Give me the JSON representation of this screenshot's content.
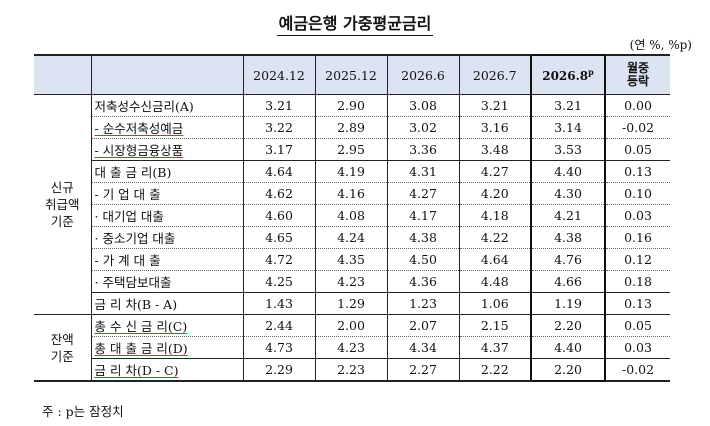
{
  "title": "예금은행 가중평균금리",
  "unit": "(연 %, %p)",
  "columns": [
    "2024.12",
    "2025.12",
    "2026.6",
    "2026.7",
    "2026.8",
    "p",
    "월중",
    "등락"
  ],
  "groups": {
    "new": "신규\n취급액\n기준",
    "balance": "잔액\n기준"
  },
  "rows": [
    {
      "label": "저축성수신금리(A)",
      "v": [
        "3.21",
        "2.90",
        "3.08",
        "3.21",
        "3.21",
        "0.00"
      ]
    },
    {
      "label": "- 순수저축성예금",
      "v": [
        "3.22",
        "2.89",
        "3.02",
        "3.16",
        "3.14",
        "-0.02"
      ]
    },
    {
      "label": "- 시장형금융상품",
      "v": [
        "3.17",
        "2.95",
        "3.36",
        "3.48",
        "3.53",
        "0.05"
      ]
    },
    {
      "label": "대 출 금 리(B)",
      "v": [
        "4.64",
        "4.19",
        "4.31",
        "4.27",
        "4.40",
        "0.13"
      ]
    },
    {
      "label": "- 기 업 대 출",
      "v": [
        "4.62",
        "4.16",
        "4.27",
        "4.20",
        "4.30",
        "0.10"
      ]
    },
    {
      "label": "· 대기업 대출",
      "v": [
        "4.60",
        "4.08",
        "4.17",
        "4.18",
        "4.21",
        "0.03"
      ]
    },
    {
      "label": "· 중소기업 대출",
      "v": [
        "4.65",
        "4.24",
        "4.38",
        "4.22",
        "4.38",
        "0.16"
      ]
    },
    {
      "label": "- 가 계 대 출",
      "v": [
        "4.72",
        "4.35",
        "4.50",
        "4.64",
        "4.76",
        "0.12"
      ]
    },
    {
      "label": "· 주택담보대출",
      "v": [
        "4.25",
        "4.23",
        "4.36",
        "4.48",
        "4.66",
        "0.18"
      ]
    },
    {
      "label": "금 리 차(B - A)",
      "v": [
        "1.43",
        "1.29",
        "1.23",
        "1.06",
        "1.19",
        "0.13"
      ]
    },
    {
      "label": "총 수 신 금 리(C)",
      "v": [
        "2.44",
        "2.00",
        "2.07",
        "2.15",
        "2.20",
        "0.05"
      ]
    },
    {
      "label": "총 대 출 금 리(D)",
      "v": [
        "4.73",
        "4.23",
        "4.34",
        "4.37",
        "4.40",
        "0.03"
      ]
    },
    {
      "label": "금 리 차(D - C)",
      "v": [
        "2.29",
        "2.23",
        "2.27",
        "2.22",
        "2.20",
        "-0.02"
      ]
    }
  ],
  "note": "주 : p는 잠정치"
}
